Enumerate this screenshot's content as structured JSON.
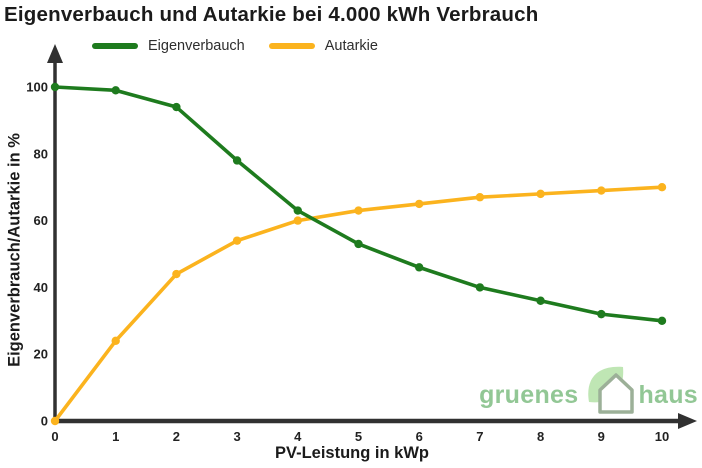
{
  "title": "Eigenverbauch und Autarkie bei 4.000 kWh Verbrauch",
  "legend": {
    "items": [
      {
        "label": "Eigenverbauch",
        "color": "#1e7b1e"
      },
      {
        "label": "Autarkie",
        "color": "#fbb31e"
      }
    ]
  },
  "chart_data": {
    "type": "line",
    "title": "Eigenverbauch und Autarkie bei 4.000 kWh Verbrauch",
    "x": [
      0,
      1,
      2,
      3,
      4,
      5,
      6,
      7,
      8,
      9,
      10
    ],
    "series": [
      {
        "name": "Eigenverbauch",
        "color": "#1e7b1e",
        "values": [
          100,
          99,
          94,
          78,
          63,
          53,
          46,
          40,
          36,
          32,
          30
        ]
      },
      {
        "name": "Autarkie",
        "color": "#fbb31e",
        "values": [
          0,
          24,
          44,
          54,
          60,
          63,
          65,
          67,
          68,
          69,
          70
        ]
      }
    ],
    "xlabel": "PV-Leistung in kWp",
    "ylabel": "Eigenverbrauch/Autarkie in %",
    "xlim": [
      0,
      10
    ],
    "ylim": [
      0,
      100
    ],
    "x_ticks": [
      0,
      1,
      2,
      3,
      4,
      5,
      6,
      7,
      8,
      9,
      10
    ],
    "y_ticks": [
      0,
      20,
      40,
      60,
      80,
      100
    ],
    "grid": false,
    "markers": true,
    "legend_position": "top-left",
    "axis_color": "#313131"
  },
  "logo": {
    "text_left": "gruenes",
    "text_right": "haus",
    "text_color": "#92c795",
    "leaf_color": "#bfe6b4",
    "house_color": "#9cb098"
  }
}
